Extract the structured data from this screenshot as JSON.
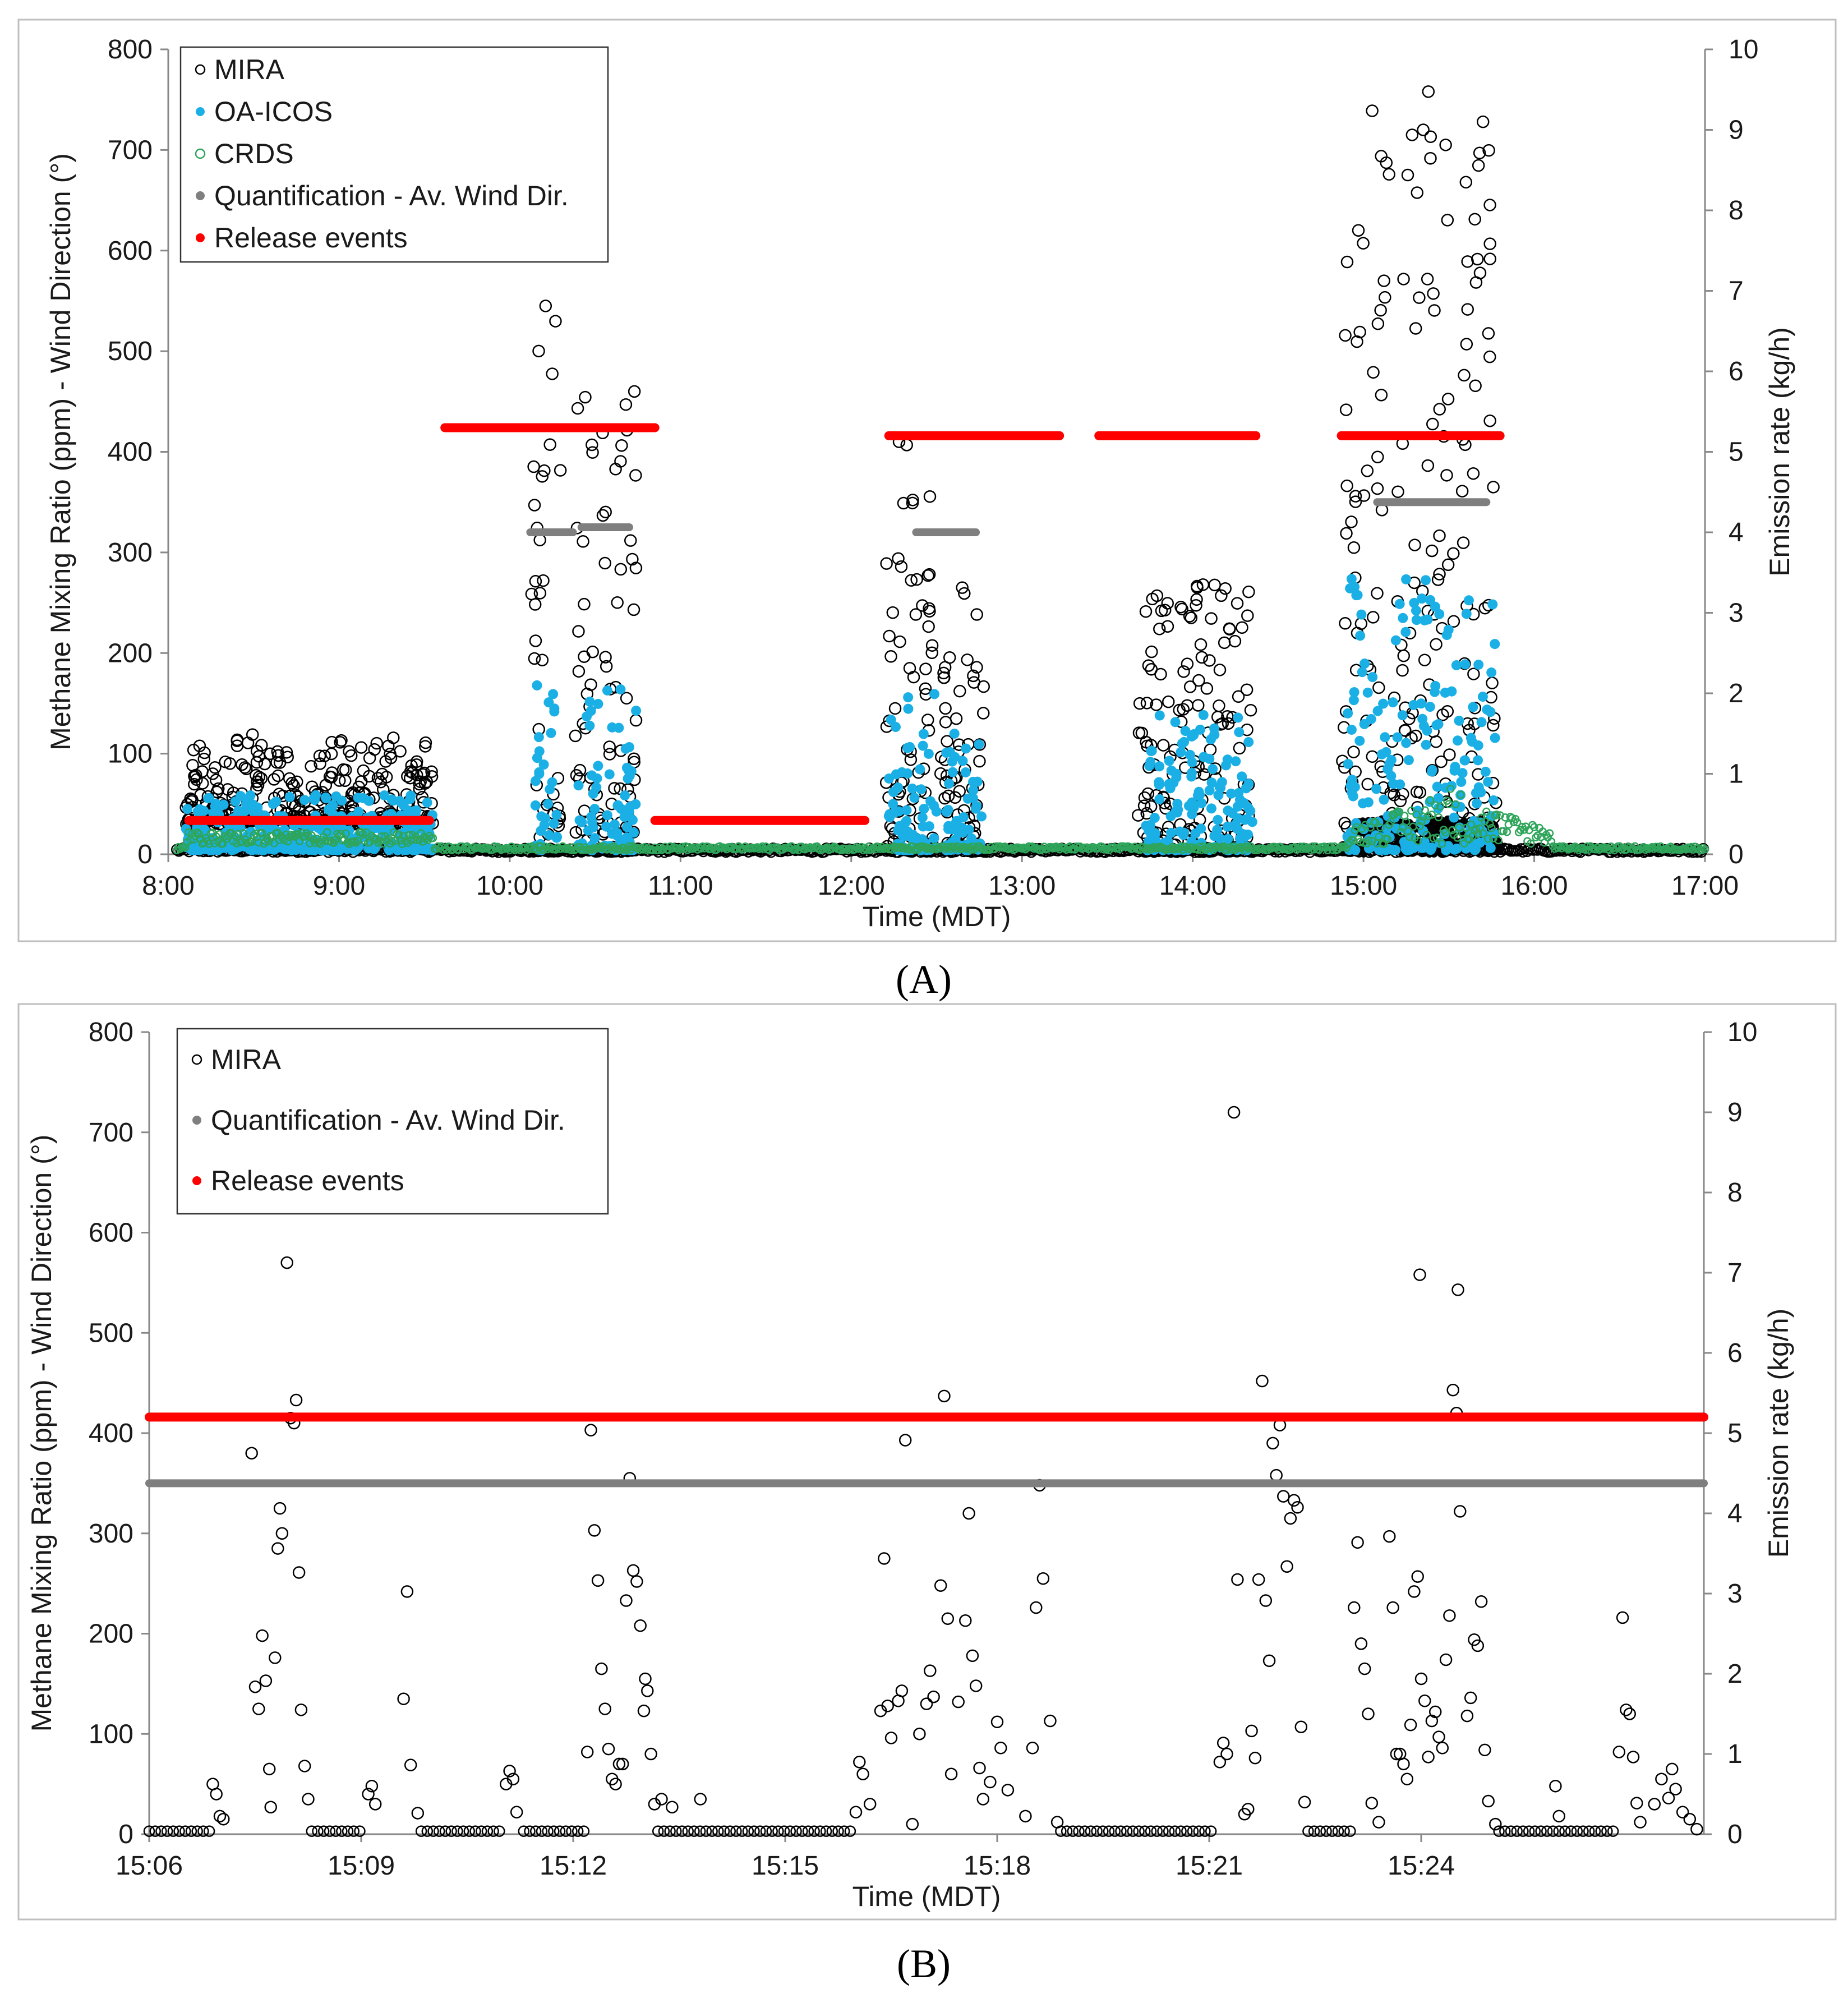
{
  "chart_data": [
    {
      "panel": "A",
      "type": "scatter",
      "xlabel": "Time (MDT)",
      "ylabel": "Methane Mixing Ratio (ppm) - Wind Direction (°)",
      "y2label": "Emission rate (kg/h)",
      "xlim": [
        8,
        17
      ],
      "ylim": [
        0,
        800
      ],
      "y2lim": [
        0,
        10
      ],
      "xtick_values": [
        8,
        9,
        10,
        11,
        12,
        13,
        14,
        15,
        16,
        17
      ],
      "xtick_labels": [
        "8:00",
        "9:00",
        "10:00",
        "11:00",
        "12:00",
        "13:00",
        "14:00",
        "15:00",
        "16:00",
        "17:00"
      ],
      "ytick_labels": [
        "0",
        "100",
        "200",
        "300",
        "400",
        "500",
        "600",
        "700",
        "800"
      ],
      "y2tick_labels": [
        "0",
        "1",
        "2",
        "3",
        "4",
        "5",
        "6",
        "7",
        "8",
        "9",
        "10"
      ],
      "legend": [
        "MIRA",
        "OA-ICOS",
        "CRDS",
        "Quantification - Av. Wind Dir.",
        "Release events"
      ],
      "colors": {
        "mira": "#000000",
        "oa_icos": "#1ab0e6",
        "crds": "#2ea55a",
        "quant": "#7f7f7f",
        "release": "#ff0000"
      },
      "release_events": [
        {
          "start": 8.12,
          "end": 9.53,
          "rate_kg_h": 0.42
        },
        {
          "start": 9.62,
          "end": 10.85,
          "rate_kg_h": 5.3
        },
        {
          "start": 10.85,
          "end": 12.08,
          "rate_kg_h": 0.42
        },
        {
          "start": 12.22,
          "end": 13.22,
          "rate_kg_h": 5.2
        },
        {
          "start": 13.45,
          "end": 14.37,
          "rate_kg_h": 5.2
        },
        {
          "start": 14.87,
          "end": 15.8,
          "rate_kg_h": 5.2
        }
      ],
      "quantification": [
        {
          "start": 10.12,
          "end": 10.37,
          "wind_dir": 320
        },
        {
          "start": 10.42,
          "end": 10.7,
          "wind_dir": 325
        },
        {
          "start": 12.38,
          "end": 12.73,
          "wind_dir": 320
        },
        {
          "start": 15.08,
          "end": 15.72,
          "wind_dir": 350
        }
      ],
      "mira_bursts": [
        {
          "start": 8.1,
          "end": 9.55,
          "peak": 120,
          "base": 30
        },
        {
          "start": 10.12,
          "end": 10.3,
          "peak": 545,
          "base": 3
        },
        {
          "start": 10.38,
          "end": 10.75,
          "peak": 460,
          "base": 3
        },
        {
          "start": 12.2,
          "end": 12.48,
          "peak": 410,
          "base": 3
        },
        {
          "start": 12.52,
          "end": 12.78,
          "peak": 265,
          "base": 3
        },
        {
          "start": 13.68,
          "end": 14.35,
          "peak": 268,
          "base": 3
        },
        {
          "start": 14.87,
          "end": 15.78,
          "peak": 758,
          "base": 5
        }
      ],
      "mira_peaks": [
        [
          10.21,
          545
        ],
        [
          10.73,
          460
        ],
        [
          10.68,
          447
        ],
        [
          12.28,
          410
        ],
        [
          12.65,
          265
        ],
        [
          14.06,
          268
        ],
        [
          15.38,
          758
        ],
        [
          15.35,
          720
        ],
        [
          15.7,
          728
        ],
        [
          15.68,
          697
        ],
        [
          15.6,
          668
        ],
        [
          15.12,
          570
        ]
      ],
      "oa_icos_bursts": [
        {
          "start": 8.1,
          "end": 9.55,
          "peak": 55
        },
        {
          "start": 10.15,
          "end": 10.28,
          "peak": 175
        },
        {
          "start": 10.4,
          "end": 10.74,
          "peak": 160
        },
        {
          "start": 12.22,
          "end": 12.5,
          "peak": 160
        },
        {
          "start": 12.55,
          "end": 12.77,
          "peak": 120
        },
        {
          "start": 13.72,
          "end": 14.35,
          "peak": 135
        },
        {
          "start": 14.9,
          "end": 15.78,
          "peak": 270
        }
      ]
    },
    {
      "panel": "B",
      "type": "scatter",
      "xlabel": "Time (MDT)",
      "ylabel": "Methane Mixing Ratio (ppm) - Wind Direction (°)",
      "y2label": "Emission rate (kg/h)",
      "xlim": [
        0,
        22
      ],
      "ylim": [
        0,
        800
      ],
      "y2lim": [
        0,
        10
      ],
      "xtick_values": [
        0,
        3,
        6,
        9,
        12,
        15,
        18
      ],
      "xtick_labels": [
        "15:06",
        "15:09",
        "15:12",
        "15:15",
        "15:18",
        "15:21",
        "15:24"
      ],
      "ytick_labels": [
        "0",
        "100",
        "200",
        "300",
        "400",
        "500",
        "600",
        "700",
        "800"
      ],
      "y2tick_labels": [
        "0",
        "1",
        "2",
        "3",
        "4",
        "5",
        "6",
        "7",
        "8",
        "9",
        "10"
      ],
      "legend": [
        "MIRA",
        "Quantification - Av. Wind Dir.",
        "Release events"
      ],
      "colors": {
        "mira": "#000000",
        "quant": "#7f7f7f",
        "release": "#ff0000"
      },
      "release_events": [
        {
          "start": 0,
          "end": 22,
          "rate_kg_h": 5.2
        }
      ],
      "quantification": [
        {
          "start": 0,
          "end": 22,
          "wind_dir": 350
        }
      ],
      "mira_points": [
        [
          0.9,
          50
        ],
        [
          0.95,
          40
        ],
        [
          1.0,
          18
        ],
        [
          1.05,
          15
        ],
        [
          1.5,
          147
        ],
        [
          1.55,
          125
        ],
        [
          1.6,
          198
        ],
        [
          1.65,
          153
        ],
        [
          1.7,
          65
        ],
        [
          1.72,
          27
        ],
        [
          1.78,
          176
        ],
        [
          1.82,
          285
        ],
        [
          1.85,
          325
        ],
        [
          1.88,
          300
        ],
        [
          1.95,
          570
        ],
        [
          2.0,
          415
        ],
        [
          2.05,
          410
        ],
        [
          2.08,
          433
        ],
        [
          2.12,
          261
        ],
        [
          2.15,
          124
        ],
        [
          2.2,
          68
        ],
        [
          2.25,
          35
        ],
        [
          1.45,
          380
        ],
        [
          3.1,
          40
        ],
        [
          3.15,
          48
        ],
        [
          3.2,
          30
        ],
        [
          3.6,
          135
        ],
        [
          3.65,
          242
        ],
        [
          3.7,
          69
        ],
        [
          3.8,
          21
        ],
        [
          5.05,
          50
        ],
        [
          5.1,
          63
        ],
        [
          5.15,
          55
        ],
        [
          5.2,
          22
        ],
        [
          6.25,
          403
        ],
        [
          6.3,
          303
        ],
        [
          6.35,
          253
        ],
        [
          6.4,
          165
        ],
        [
          6.45,
          125
        ],
        [
          6.5,
          85
        ],
        [
          6.55,
          55
        ],
        [
          6.6,
          50
        ],
        [
          6.65,
          70
        ],
        [
          6.7,
          70
        ],
        [
          6.75,
          233
        ],
        [
          6.8,
          355
        ],
        [
          6.85,
          263
        ],
        [
          6.9,
          252
        ],
        [
          6.95,
          208
        ],
        [
          7.0,
          123
        ],
        [
          7.02,
          155
        ],
        [
          7.05,
          143
        ],
        [
          7.1,
          80
        ],
        [
          7.15,
          30
        ],
        [
          6.2,
          82
        ],
        [
          7.25,
          35
        ],
        [
          7.4,
          27
        ],
        [
          7.8,
          35
        ],
        [
          10.0,
          22
        ],
        [
          10.05,
          72
        ],
        [
          10.1,
          60
        ],
        [
          10.2,
          30
        ],
        [
          10.35,
          123
        ],
        [
          10.4,
          275
        ],
        [
          10.45,
          128
        ],
        [
          10.5,
          96
        ],
        [
          10.6,
          133
        ],
        [
          10.65,
          143
        ],
        [
          10.7,
          393
        ],
        [
          10.8,
          10
        ],
        [
          10.9,
          100
        ],
        [
          11.0,
          130
        ],
        [
          11.05,
          163
        ],
        [
          11.1,
          137
        ],
        [
          11.2,
          248
        ],
        [
          11.25,
          437
        ],
        [
          11.3,
          215
        ],
        [
          11.35,
          60
        ],
        [
          11.45,
          132
        ],
        [
          11.55,
          213
        ],
        [
          11.6,
          320
        ],
        [
          11.65,
          178
        ],
        [
          11.7,
          148
        ],
        [
          11.75,
          66
        ],
        [
          11.8,
          35
        ],
        [
          11.9,
          52
        ],
        [
          12.0,
          112
        ],
        [
          12.05,
          86
        ],
        [
          12.15,
          44
        ],
        [
          12.4,
          18
        ],
        [
          12.5,
          86
        ],
        [
          12.55,
          226
        ],
        [
          12.6,
          348
        ],
        [
          12.65,
          255
        ],
        [
          12.75,
          113
        ],
        [
          12.85,
          12
        ],
        [
          15.15,
          72
        ],
        [
          15.2,
          91
        ],
        [
          15.25,
          80
        ],
        [
          15.35,
          720
        ],
        [
          15.4,
          254
        ],
        [
          15.5,
          20
        ],
        [
          15.55,
          25
        ],
        [
          15.6,
          103
        ],
        [
          15.65,
          76
        ],
        [
          15.7,
          254
        ],
        [
          15.75,
          452
        ],
        [
          15.8,
          233
        ],
        [
          15.85,
          173
        ],
        [
          15.9,
          390
        ],
        [
          15.95,
          358
        ],
        [
          16.0,
          408
        ],
        [
          16.05,
          337
        ],
        [
          16.1,
          267
        ],
        [
          16.15,
          315
        ],
        [
          16.2,
          333
        ],
        [
          16.25,
          326
        ],
        [
          16.3,
          107
        ],
        [
          16.35,
          32
        ],
        [
          17.05,
          226
        ],
        [
          17.1,
          291
        ],
        [
          17.15,
          190
        ],
        [
          17.2,
          165
        ],
        [
          17.25,
          120
        ],
        [
          17.3,
          31
        ],
        [
          17.4,
          12
        ],
        [
          17.55,
          297
        ],
        [
          17.6,
          226
        ],
        [
          17.65,
          80
        ],
        [
          17.7,
          80
        ],
        [
          17.75,
          70
        ],
        [
          17.8,
          55
        ],
        [
          17.85,
          109
        ],
        [
          17.9,
          242
        ],
        [
          17.95,
          257
        ],
        [
          17.98,
          558
        ],
        [
          18.0,
          155
        ],
        [
          18.05,
          133
        ],
        [
          18.1,
          77
        ],
        [
          18.15,
          113
        ],
        [
          18.2,
          122
        ],
        [
          18.25,
          97
        ],
        [
          18.3,
          86
        ],
        [
          18.35,
          174
        ],
        [
          18.4,
          218
        ],
        [
          18.45,
          443
        ],
        [
          18.5,
          420
        ],
        [
          18.52,
          543
        ],
        [
          18.55,
          322
        ],
        [
          18.65,
          118
        ],
        [
          18.7,
          136
        ],
        [
          18.75,
          194
        ],
        [
          18.8,
          188
        ],
        [
          18.85,
          232
        ],
        [
          18.9,
          84
        ],
        [
          18.95,
          33
        ],
        [
          19.05,
          10
        ],
        [
          19.9,
          48
        ],
        [
          19.95,
          18
        ],
        [
          20.8,
          82
        ],
        [
          20.85,
          216
        ],
        [
          20.9,
          124
        ],
        [
          20.95,
          120
        ],
        [
          21.0,
          77
        ],
        [
          21.05,
          31
        ],
        [
          21.1,
          12
        ],
        [
          21.3,
          30
        ],
        [
          21.4,
          55
        ],
        [
          21.5,
          36
        ],
        [
          21.55,
          65
        ],
        [
          21.6,
          45
        ],
        [
          21.7,
          22
        ],
        [
          21.8,
          15
        ],
        [
          21.9,
          5
        ]
      ],
      "mira_quiet_ranges": [
        [
          0,
          0.85
        ],
        [
          2.3,
          3.05
        ],
        [
          3.85,
          5.0
        ],
        [
          5.3,
          6.15
        ],
        [
          7.2,
          10.0
        ],
        [
          12.9,
          15.1
        ],
        [
          16.4,
          17.0
        ],
        [
          19.1,
          20.75
        ]
      ]
    }
  ],
  "panel_labels": [
    "(A)",
    "(B)"
  ]
}
